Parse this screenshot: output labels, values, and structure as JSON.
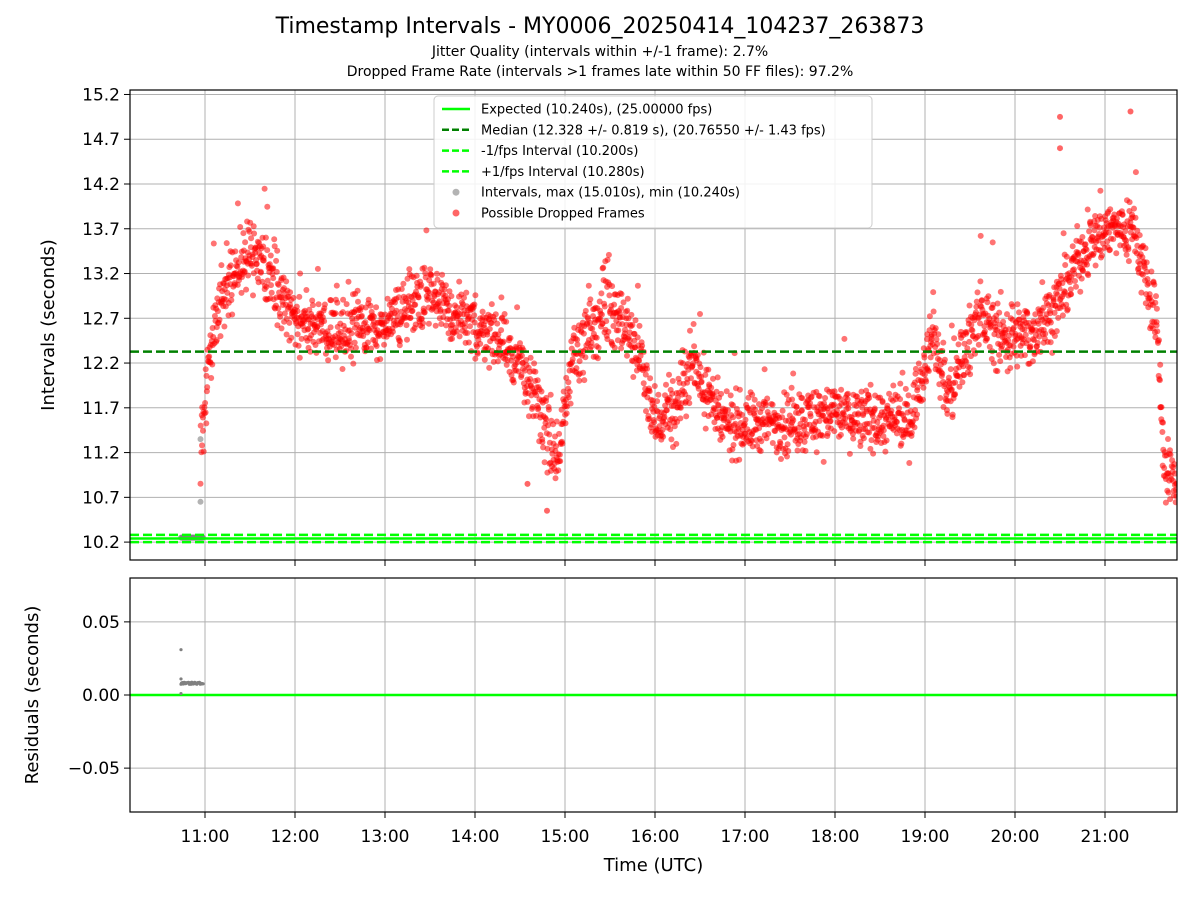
{
  "chart_data": [
    {
      "type": "scatter",
      "panel": "intervals",
      "title": "Timestamp Intervals - MY0006_20250414_104237_263873",
      "subtitle_1": "Jitter Quality (intervals within +/-1 frame): 2.7%",
      "subtitle_2": "Dropped Frame Rate (intervals >1 frames late within 50 FF files): 97.2%",
      "xlabel": "Time (UTC)",
      "ylabel": "Intervals (seconds)",
      "x_range": [
        "10:10",
        "21:48"
      ],
      "ylim": [
        10.0,
        15.25
      ],
      "grid": true,
      "legend_position": "top-center",
      "x_ticks": [
        "11:00",
        "12:00",
        "13:00",
        "14:00",
        "15:00",
        "16:00",
        "17:00",
        "18:00",
        "19:00",
        "20:00",
        "21:00"
      ],
      "y_ticks": [
        "10.2",
        "10.7",
        "11.2",
        "11.7",
        "12.2",
        "12.7",
        "13.2",
        "13.7",
        "14.2",
        "14.7",
        "15.2"
      ],
      "lines": [
        {
          "name": "Expected (10.240s), (25.00000 fps)",
          "y": 10.24,
          "style": "solid",
          "color": "#00ff00"
        },
        {
          "name": "Median (12.328 +/- 0.819 s), (20.76550 +/- 1.43 fps)",
          "y": 12.328,
          "style": "dashed",
          "color": "#008000"
        },
        {
          "name": "-1/fps Interval (10.200s)",
          "y": 10.2,
          "style": "dashed",
          "color": "#00ff00"
        },
        {
          "name": "+1/fps Interval (10.280s)",
          "y": 10.28,
          "style": "dashed",
          "color": "#00ff00"
        }
      ],
      "point_series": [
        {
          "name": "Intervals, max (15.010s), min (10.240s)",
          "color": "#808080"
        },
        {
          "name": "Possible Dropped Frames",
          "color": "#ff0000"
        }
      ],
      "trend_profile": [
        {
          "t": "10:57",
          "y": 11.3,
          "spread": 0.3
        },
        {
          "t": "11:05",
          "y": 12.6,
          "spread": 0.3
        },
        {
          "t": "11:15",
          "y": 13.1,
          "spread": 0.35
        },
        {
          "t": "11:30",
          "y": 13.45,
          "spread": 0.3
        },
        {
          "t": "11:45",
          "y": 13.2,
          "spread": 0.35
        },
        {
          "t": "12:00",
          "y": 12.65,
          "spread": 0.3
        },
        {
          "t": "12:30",
          "y": 12.55,
          "spread": 0.3
        },
        {
          "t": "13:00",
          "y": 12.6,
          "spread": 0.3
        },
        {
          "t": "13:30",
          "y": 13.05,
          "spread": 0.3
        },
        {
          "t": "13:45",
          "y": 12.7,
          "spread": 0.35
        },
        {
          "t": "14:10",
          "y": 12.55,
          "spread": 0.3
        },
        {
          "t": "14:30",
          "y": 12.2,
          "spread": 0.3
        },
        {
          "t": "14:45",
          "y": 11.6,
          "spread": 0.4
        },
        {
          "t": "14:55",
          "y": 11.1,
          "spread": 0.3
        },
        {
          "t": "15:05",
          "y": 12.3,
          "spread": 0.3
        },
        {
          "t": "15:30",
          "y": 12.85,
          "spread": 0.35
        },
        {
          "t": "15:50",
          "y": 12.3,
          "spread": 0.3
        },
        {
          "t": "16:00",
          "y": 11.55,
          "spread": 0.3
        },
        {
          "t": "16:15",
          "y": 11.7,
          "spread": 0.35
        },
        {
          "t": "16:25",
          "y": 12.25,
          "spread": 0.3
        },
        {
          "t": "16:45",
          "y": 11.5,
          "spread": 0.3
        },
        {
          "t": "17:30",
          "y": 11.55,
          "spread": 0.3
        },
        {
          "t": "18:00",
          "y": 11.65,
          "spread": 0.3
        },
        {
          "t": "18:30",
          "y": 11.55,
          "spread": 0.3
        },
        {
          "t": "18:50",
          "y": 11.55,
          "spread": 0.3
        },
        {
          "t": "19:05",
          "y": 12.6,
          "spread": 0.3
        },
        {
          "t": "19:15",
          "y": 11.8,
          "spread": 0.35
        },
        {
          "t": "19:35",
          "y": 12.75,
          "spread": 0.3
        },
        {
          "t": "19:50",
          "y": 12.5,
          "spread": 0.35
        },
        {
          "t": "20:10",
          "y": 12.5,
          "spread": 0.3
        },
        {
          "t": "20:30",
          "y": 12.9,
          "spread": 0.3
        },
        {
          "t": "20:45",
          "y": 13.45,
          "spread": 0.3
        },
        {
          "t": "21:00",
          "y": 13.7,
          "spread": 0.3
        },
        {
          "t": "21:20",
          "y": 13.7,
          "spread": 0.3
        },
        {
          "t": "21:35",
          "y": 12.5,
          "spread": 0.35
        },
        {
          "t": "21:40",
          "y": 11.0,
          "spread": 0.3
        },
        {
          "t": "21:48",
          "y": 10.85,
          "spread": 0.25
        }
      ],
      "notable_points": [
        {
          "t": "10:52",
          "y": 10.25,
          "series": "Intervals, max (15.010s), min (10.240s)"
        },
        {
          "t": "10:57",
          "y": 10.65,
          "series": "Intervals, max (15.010s), min (10.240s)"
        },
        {
          "t": "10:57",
          "y": 11.35,
          "series": "Intervals, max (15.010s), min (10.240s)"
        },
        {
          "t": "20:30",
          "y": 14.95,
          "series": "Possible Dropped Frames"
        },
        {
          "t": "20:30",
          "y": 14.6,
          "series": "Possible Dropped Frames"
        },
        {
          "t": "21:17",
          "y": 15.01,
          "series": "Possible Dropped Frames"
        },
        {
          "t": "14:48",
          "y": 10.55,
          "series": "Possible Dropped Frames"
        },
        {
          "t": "14:35",
          "y": 10.85,
          "series": "Possible Dropped Frames"
        }
      ]
    },
    {
      "type": "scatter",
      "panel": "residuals",
      "xlabel": "Time (UTC)",
      "ylabel": "Residuals (seconds)",
      "ylim": [
        -0.08,
        0.08
      ],
      "grid": true,
      "y_ticks": [
        "0.05",
        "0.00",
        "−0.05"
      ],
      "zero_line": {
        "y": 0.0,
        "color": "#00ff00"
      },
      "points": [
        {
          "t": "10:44",
          "y": 0.031
        },
        {
          "t": "10:44",
          "y": 0.011
        },
        {
          "t": "10:44",
          "y": 0.001
        }
      ],
      "dense_run": {
        "t_start": "10:44",
        "t_end": "10:59",
        "y": 0.008,
        "color": "#808080"
      }
    }
  ]
}
